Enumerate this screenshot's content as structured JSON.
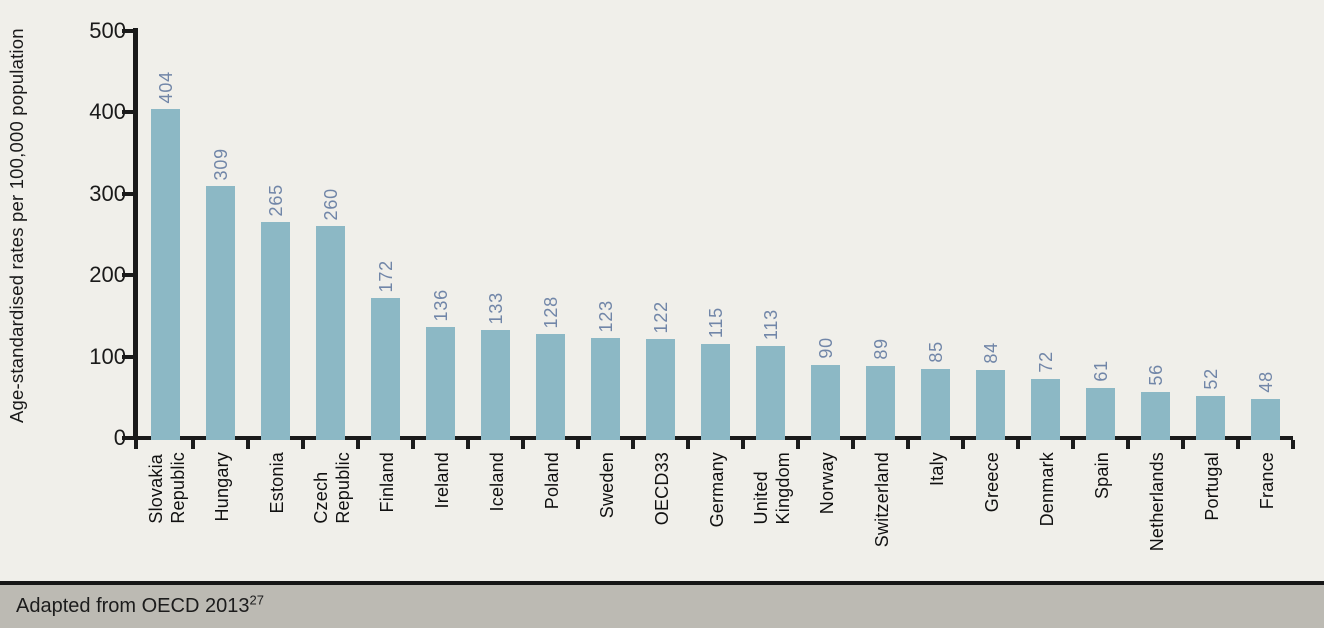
{
  "chart_data": {
    "type": "bar",
    "title": "",
    "ylabel": "Age-standardised rates per 100,000 population",
    "xlabel": "",
    "categories": [
      "Slovakia Republic",
      "Hungary",
      "Estonia",
      "Czech Republic",
      "Finland",
      "Ireland",
      "Iceland",
      "Poland",
      "Sweden",
      "OECD33",
      "Germany",
      "United Kingdom",
      "Norway",
      "Switzerland",
      "Italy",
      "Greece",
      "Denmark",
      "Spain",
      "Netherlands",
      "Portugal",
      "France"
    ],
    "category_label_lines": [
      [
        "Slovakia",
        "Republic"
      ],
      [
        "Hungary"
      ],
      [
        "Estonia"
      ],
      [
        "Czech",
        "Republic"
      ],
      [
        "Finland"
      ],
      [
        "Ireland"
      ],
      [
        "Iceland"
      ],
      [
        "Poland"
      ],
      [
        "Sweden"
      ],
      [
        "OECD33"
      ],
      [
        "Germany"
      ],
      [
        "United",
        "Kingdom"
      ],
      [
        "Norway"
      ],
      [
        "Switzerland"
      ],
      [
        "Italy"
      ],
      [
        "Greece"
      ],
      [
        "Denmark"
      ],
      [
        "Spain"
      ],
      [
        "Netherlands"
      ],
      [
        "Portugal"
      ],
      [
        "France"
      ]
    ],
    "values": [
      404,
      309,
      265,
      260,
      172,
      136,
      133,
      128,
      123,
      122,
      115,
      113,
      90,
      89,
      85,
      84,
      72,
      61,
      56,
      52,
      48
    ],
    "ylim": [
      0,
      500
    ],
    "yticks": [
      0,
      100,
      200,
      300,
      400,
      500
    ],
    "value_labels_shown": true,
    "label_orientation": "rotated-90-bottom-to-top",
    "grid": false,
    "legend": "none"
  },
  "colors": {
    "background": "#F0EFEA",
    "bar": "#8CB8C5",
    "value_label": "#7186A8",
    "axis": "#1A1A1A",
    "footer_background": "#BCBAB3",
    "footer_divider": "#161616",
    "footer_text": "#1C1C1C"
  },
  "footer": {
    "source_text": "Adapted from OECD 2013",
    "superscript": "27"
  }
}
